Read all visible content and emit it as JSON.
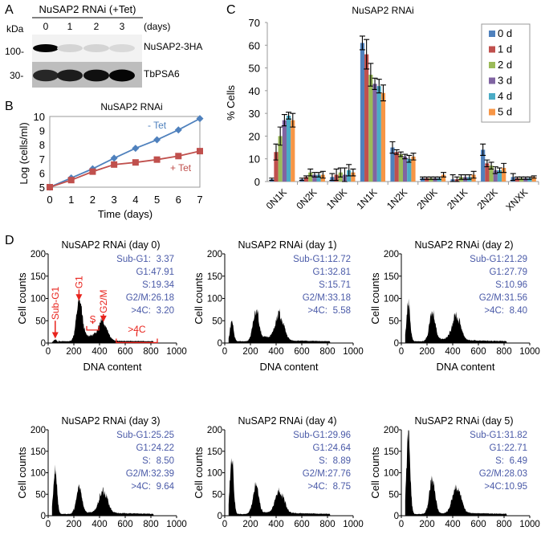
{
  "panel_labels": [
    "A",
    "B",
    "C",
    "D"
  ],
  "colors": {
    "minus_tet": "#4f81bd",
    "plus_tet": "#c0504d",
    "stats_text": "#4a5aa8",
    "annotation": "#e8231c",
    "series": [
      "#4f81bd",
      "#c0504d",
      "#9bbb59",
      "#8064a2",
      "#4bacc6",
      "#f79646"
    ]
  },
  "western": {
    "header": "NuSAP2 RNAi (+Tet)",
    "kda_label": "kDa",
    "days_label": "(days)",
    "lanes": [
      "0",
      "1",
      "2",
      "3"
    ],
    "rows": [
      {
        "marker": "100-",
        "label": "NuSAP2-3HA",
        "band_intensity": [
          1.0,
          0.08,
          0.08,
          0.06
        ]
      },
      {
        "marker": "30-",
        "label": "TbPSA6",
        "band_intensity": [
          0.85,
          0.9,
          0.95,
          1.0
        ]
      }
    ]
  },
  "chart_data": [
    {
      "id": "B",
      "type": "line",
      "title": "NuSAP2 RNAi",
      "xlabel": "Time (days)",
      "ylabel": "Log (cells/ml)",
      "x": [
        0,
        1,
        2,
        3,
        4,
        5,
        6,
        7
      ],
      "xticks": [
        "0",
        "1",
        "2",
        "3",
        "4",
        "5",
        "6",
        "7"
      ],
      "yticks": [
        "5",
        "6",
        "7",
        "8",
        "9",
        "10"
      ],
      "xlim": [
        0,
        7
      ],
      "ylim": [
        5,
        10
      ],
      "series": [
        {
          "name": "- Tet",
          "values": [
            5.0,
            5.65,
            6.3,
            7.05,
            7.75,
            8.35,
            9.05,
            9.85
          ],
          "marker": "diamond"
        },
        {
          "name": "+ Tet",
          "values": [
            5.0,
            5.5,
            6.1,
            6.6,
            6.75,
            6.95,
            7.2,
            7.55
          ],
          "marker": "square"
        }
      ]
    },
    {
      "id": "C",
      "type": "bar",
      "title": "NuSAP2 RNAi",
      "ylabel": "% Cells",
      "ylim": [
        0,
        70
      ],
      "yticks": [
        "0",
        "10",
        "20",
        "30",
        "40",
        "50",
        "60",
        "70"
      ],
      "categories": [
        "0N1K",
        "0N2K",
        "1N0K",
        "1N1K",
        "1N2K",
        "2N0K",
        "2N1K",
        "2N2K",
        "XNXK"
      ],
      "legend": "top-right",
      "series": [
        {
          "name": "0 d",
          "values": [
            1,
            1,
            2,
            61,
            15,
            1.5,
            1,
            14,
            2
          ],
          "errors": [
            0.5,
            0.5,
            1.5,
            3,
            2.5,
            0.5,
            2,
            2.5,
            1.5
          ]
        },
        {
          "name": "1 d",
          "values": [
            13,
            2,
            3,
            56,
            13,
            1.5,
            1,
            8,
            1.5
          ],
          "errors": [
            3.5,
            0.5,
            2.5,
            6.5,
            1,
            0.5,
            1,
            1.5,
            0.5
          ]
        },
        {
          "name": "2 d",
          "values": [
            20,
            4,
            4,
            47,
            12,
            1.5,
            2,
            7,
            1.5
          ],
          "errors": [
            4,
            1.5,
            2,
            5,
            1,
            0.5,
            1,
            1.5,
            0.5
          ]
        },
        {
          "name": "3 d",
          "values": [
            27,
            3,
            3,
            43,
            11,
            1.5,
            2,
            5,
            1.5
          ],
          "errors": [
            2.5,
            1,
            3,
            2.5,
            1,
            0.5,
            1,
            1.5,
            0.5
          ]
        },
        {
          "name": "4 d",
          "values": [
            29,
            3,
            5,
            42,
            10,
            1.5,
            2,
            5,
            1.5
          ],
          "errors": [
            1.5,
            1,
            2.5,
            3,
            1.5,
            0.5,
            1,
            1,
            0.5
          ]
        },
        {
          "name": "5 d",
          "values": [
            27,
            3,
            4,
            39,
            11,
            3,
            3,
            6,
            2
          ],
          "errors": [
            3,
            1.5,
            1.5,
            3.5,
            1.5,
            1,
            1.5,
            2,
            0.5
          ]
        }
      ]
    },
    {
      "id": "D",
      "type": "area",
      "xlabel": "DNA content",
      "ylabel": "Cell counts",
      "xlim": [
        0,
        1000
      ],
      "ylim": [
        0,
        200
      ],
      "xticks": [
        "0",
        "200",
        "400",
        "600",
        "800",
        "1000"
      ],
      "yticks": [
        "0",
        "50",
        "100",
        "150",
        "200"
      ],
      "stat_labels": [
        "Sub-G1:",
        "G1:",
        "S:",
        "G2/M:",
        ">4C:"
      ],
      "annotations": [
        "Sub-G1",
        "G1",
        "S",
        "G2/M",
        ">4C"
      ],
      "panels": [
        {
          "title": "NuSAP2 RNAi (day 0)",
          "stats": [
            "3.37",
            "47.91",
            "19.34",
            "26.18",
            "3.20"
          ],
          "peak_counts": [
            8,
            93,
            43
          ]
        },
        {
          "title": "NuSAP2 RNAi (day 1)",
          "stats": [
            "12.72",
            "32.81",
            "15.71",
            "33.18",
            "5.58"
          ],
          "peak_counts": [
            50,
            72,
            55
          ]
        },
        {
          "title": "NuSAP2 RNAi (day 2)",
          "stats": [
            "21.29",
            "27.79",
            "10.96",
            "31.56",
            "8.40"
          ],
          "peak_counts": [
            92,
            68,
            57
          ]
        },
        {
          "title": "NuSAP2 RNAi (day 3)",
          "stats": [
            "25.25",
            "24.22",
            "8.50",
            "32.39",
            "9.64"
          ],
          "peak_counts": [
            110,
            64,
            53
          ]
        },
        {
          "title": "NuSAP2 RNAi (day 4)",
          "stats": [
            "29.96",
            "24.64",
            "8.89",
            "27.76",
            "8.75"
          ],
          "peak_counts": [
            137,
            70,
            55
          ]
        },
        {
          "title": "NuSAP2 RNAi (day 5)",
          "stats": [
            "31.82",
            "22.71",
            "6.49",
            "28.03",
            "10.95"
          ],
          "peak_counts": [
            195,
            85,
            65
          ]
        }
      ]
    }
  ]
}
